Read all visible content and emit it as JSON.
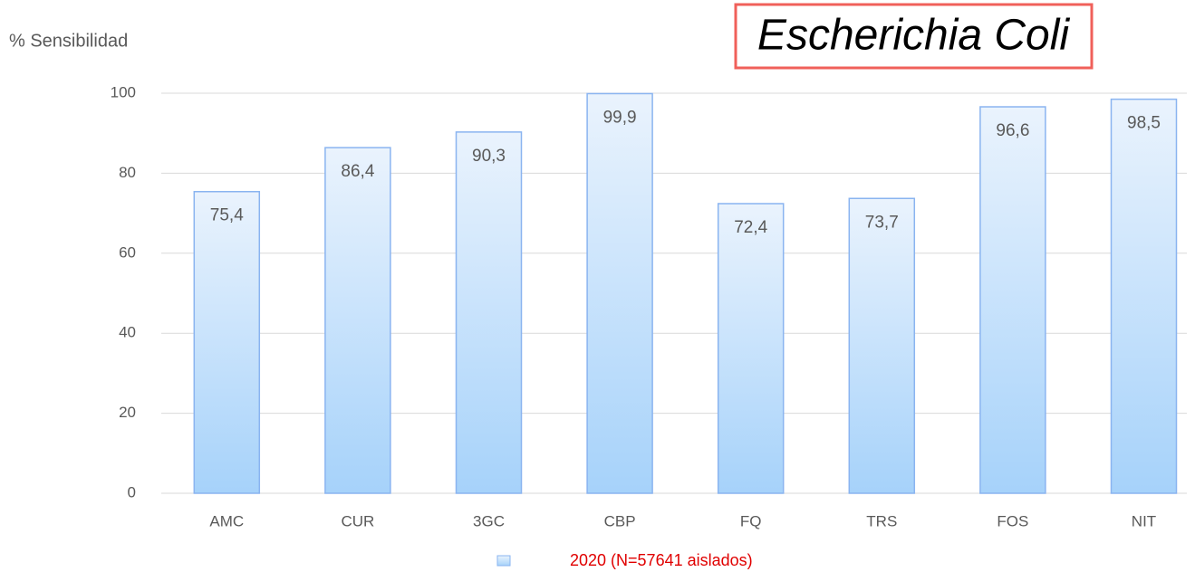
{
  "chart_data": {
    "type": "bar",
    "title": "Escherichia Coli",
    "y_label": "% Sensibilidad",
    "categories": [
      "AMC",
      "CUR",
      "3GC",
      "CBP",
      "FQ",
      "TRS",
      "FOS",
      "NIT"
    ],
    "series": [
      {
        "name": "2020 (N=57641 aislados)",
        "color": "#a6d2fa",
        "values": [
          75.4,
          86.4,
          90.3,
          99.9,
          72.4,
          73.7,
          96.6,
          98.5
        ],
        "value_labels": [
          "75,4",
          "86,4",
          "90,3",
          "99,9",
          "72,4",
          "73,7",
          "96,6",
          "98,5"
        ]
      }
    ],
    "ylim": [
      0,
      100
    ],
    "yticks": [
      0,
      20,
      40,
      60,
      80,
      100
    ],
    "grid": true,
    "legend": "bottom"
  }
}
